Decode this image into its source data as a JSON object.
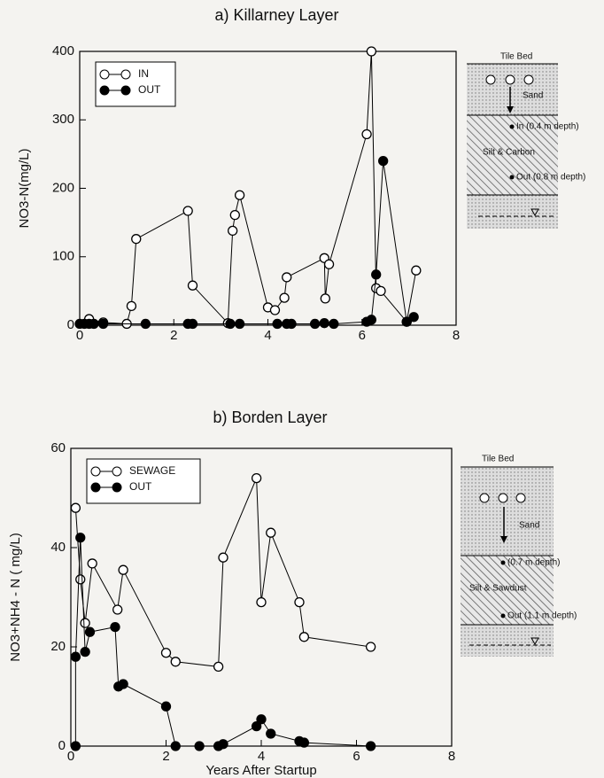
{
  "chart_data": [
    {
      "type": "line",
      "title": "a)  Killarney  Layer",
      "y_label": "NO3-N(mg/L)",
      "xlim": [
        0,
        8
      ],
      "xticks": [
        0,
        2,
        4,
        6,
        8
      ],
      "ylim": [
        0,
        400
      ],
      "yticks": [
        0,
        100,
        200,
        300,
        400
      ],
      "legend": "upper left",
      "series": [
        {
          "name": "IN",
          "color": "#000000",
          "fill": "#ffffff",
          "x": [
            0.2,
            0.5,
            1.0,
            1.1,
            1.2,
            2.3,
            2.4,
            3.15,
            3.25,
            3.3,
            3.4,
            4.0,
            4.15,
            4.35,
            4.4,
            5.2,
            5.22,
            5.3,
            6.1,
            6.2,
            6.3,
            6.4,
            6.95,
            7.15
          ],
          "values": [
            9,
            4,
            2,
            28,
            126,
            167,
            58,
            3,
            138,
            161,
            190,
            26,
            22,
            40,
            70,
            98,
            39,
            89,
            279,
            400,
            54,
            50,
            5,
            80
          ]
        },
        {
          "name": "OUT",
          "color": "#000000",
          "fill": "#000000",
          "x": [
            0,
            0.1,
            0.2,
            0.3,
            0.5,
            1.4,
            2.3,
            2.4,
            3.2,
            3.4,
            4.2,
            4.4,
            4.5,
            5.0,
            5.2,
            5.4,
            6.1,
            6.2,
            6.3,
            6.45,
            6.95,
            7.1
          ],
          "values": [
            2,
            2,
            2,
            2,
            2,
            2,
            2,
            2,
            2,
            2,
            2,
            2,
            2,
            2,
            3,
            2,
            5,
            8,
            74,
            240,
            5,
            12
          ]
        }
      ]
    },
    {
      "type": "line",
      "title": "b)  Borden  Layer",
      "y_label": "NO3+NH4 - N ( mg/L)",
      "x_label": "Years After Startup",
      "xlim": [
        0,
        8
      ],
      "xticks": [
        0,
        2,
        4,
        6,
        8
      ],
      "ylim": [
        0,
        60
      ],
      "yticks": [
        0,
        20,
        40,
        60
      ],
      "legend": "upper left",
      "series": [
        {
          "name": "SEWAGE",
          "color": "#000000",
          "fill": "#ffffff",
          "x": [
            0.1,
            0.2,
            0.3,
            0.45,
            0.98,
            1.1,
            2.0,
            2.2,
            3.1,
            3.2,
            3.9,
            4.0,
            4.2,
            4.8,
            4.9,
            6.3
          ],
          "values": [
            48,
            33.6,
            24.8,
            36.8,
            27.5,
            35.5,
            18.8,
            17,
            16,
            38,
            54,
            29,
            43,
            29,
            22,
            20
          ]
        },
        {
          "name": "OUT",
          "color": "#000000",
          "fill": "#000000",
          "x": [
            0.1,
            0.1,
            0.2,
            0.3,
            0.4,
            0.93,
            1.0,
            1.1,
            2.0,
            2.2,
            2.7,
            3.1,
            3.2,
            3.9,
            4.0,
            4.2,
            4.8,
            4.9,
            6.3
          ],
          "values": [
            0,
            18,
            42,
            19,
            23,
            24,
            12,
            12.5,
            8,
            0,
            0,
            0,
            0.4,
            4,
            5.4,
            2.5,
            1,
            0.7,
            0
          ]
        }
      ]
    }
  ],
  "diagrams": [
    {
      "top": "Tile Bed",
      "upper": "Sand",
      "inlet": "In (0.4 m depth)",
      "lower": "Silt & Carbon",
      "outlet": "Out (0.8 m depth)"
    },
    {
      "top": "Tile Bed",
      "upper": "Sand",
      "inlet": "(0.7 m depth)",
      "lower": "Silt & Sawdust",
      "outlet": "Out (1.1 m depth)"
    }
  ]
}
